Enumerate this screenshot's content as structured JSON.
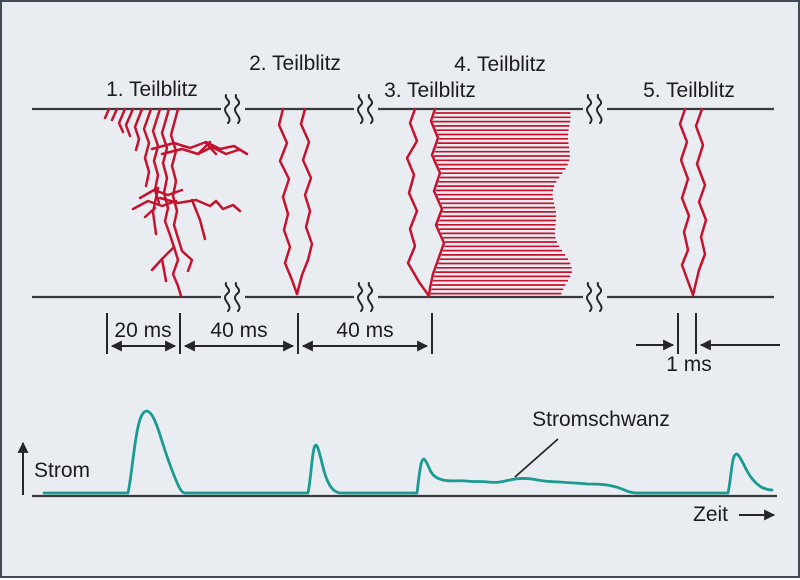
{
  "colors": {
    "background": "#e9edf2",
    "border": "#3f4b57",
    "lightning_red": "#c3132f",
    "current_teal": "#1b9a92",
    "line_dark": "#3a3a3c",
    "annotation_dark": "#26262a",
    "text": "#1c1c1e"
  },
  "strokes": {
    "labels": [
      "1. Teilblitz",
      "2. Teilblitz",
      "3. Teilblitz",
      "4. Teilblitz",
      "5. Teilblitz"
    ]
  },
  "timeline": {
    "interval_1": "20 ms",
    "interval_2": "40 ms",
    "interval_3": "40 ms",
    "interval_4": "1 ms"
  },
  "plot": {
    "y_axis_label": "Strom",
    "x_axis_label": "Zeit",
    "annotation": "Stromschwanz"
  }
}
